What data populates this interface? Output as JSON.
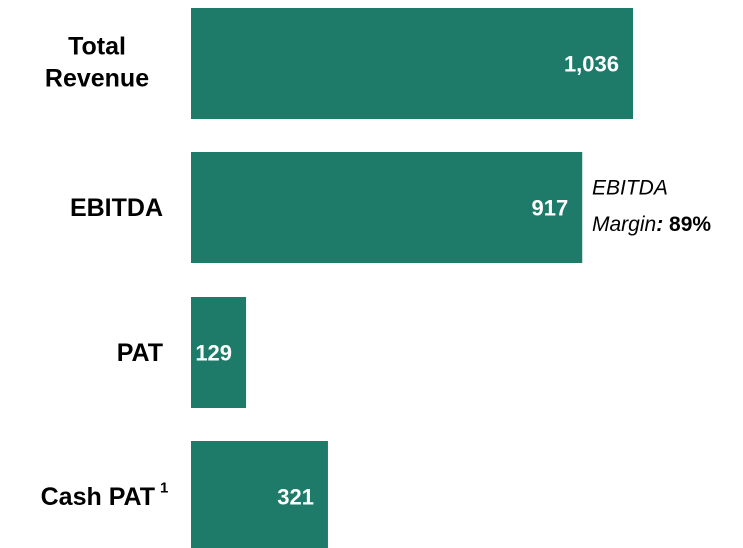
{
  "chart_data": {
    "type": "barh",
    "categories": [
      "Total Revenue",
      "EBITDA",
      "PAT",
      "Cash PAT"
    ],
    "category_footnotes": [
      null,
      null,
      null,
      "1"
    ],
    "values": [
      1036,
      917,
      129,
      321
    ],
    "value_labels": [
      "1,036",
      "917",
      "129",
      "321"
    ],
    "color": "#1e7b69",
    "annotation": {
      "label": "EBITDA Margin:",
      "value": "89%"
    }
  }
}
